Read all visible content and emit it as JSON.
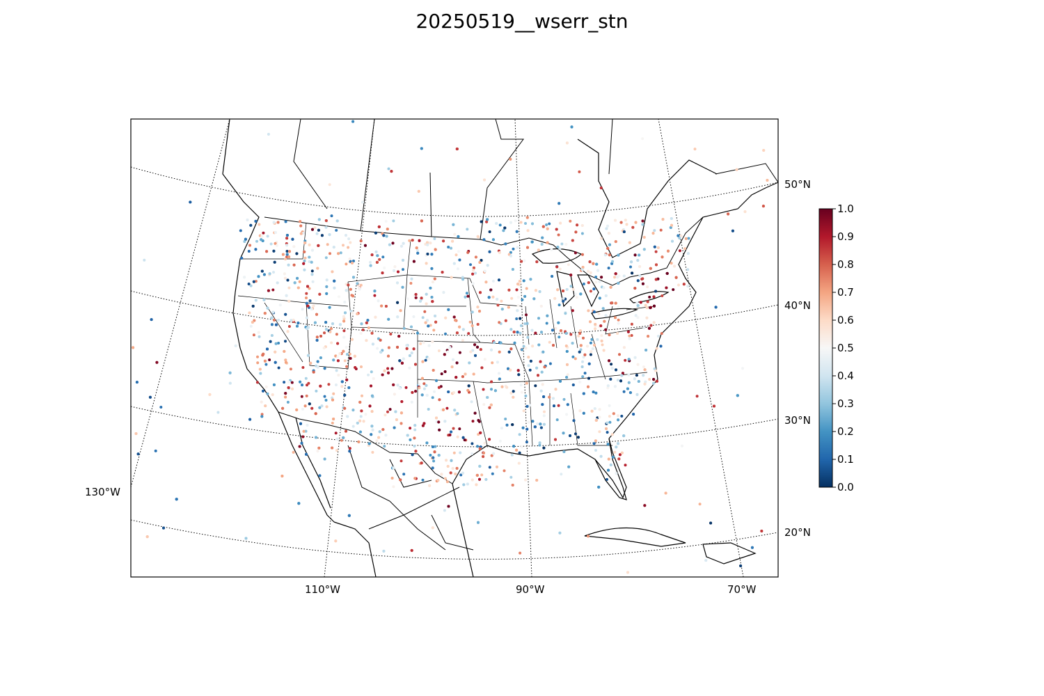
{
  "title": "20250519__wserr_stn",
  "colorbar": {
    "cmap": "RdBu_r",
    "ticks": [
      "1.0",
      "0.9",
      "0.8",
      "0.7",
      "0.6",
      "0.5",
      "0.4",
      "0.3",
      "0.2",
      "0.1",
      "0.0"
    ],
    "min": 0.0,
    "max": 1.0,
    "colors": [
      "#053061",
      "#2166ac",
      "#4393c3",
      "#92c5de",
      "#d1e5f0",
      "#f7f7f7",
      "#fddbc7",
      "#f4a582",
      "#d6604d",
      "#b2182b",
      "#67001f"
    ]
  },
  "graticule": {
    "parallel_labels": [
      "50°N",
      "40°N",
      "30°N",
      "20°N"
    ],
    "meridian_labels": [
      "130°W",
      "110°W",
      "90°W",
      "70°W"
    ]
  },
  "colors": {
    "coastline": "#000000",
    "border": "#000000",
    "graticule": "#000000",
    "background": "#ffffff"
  }
}
